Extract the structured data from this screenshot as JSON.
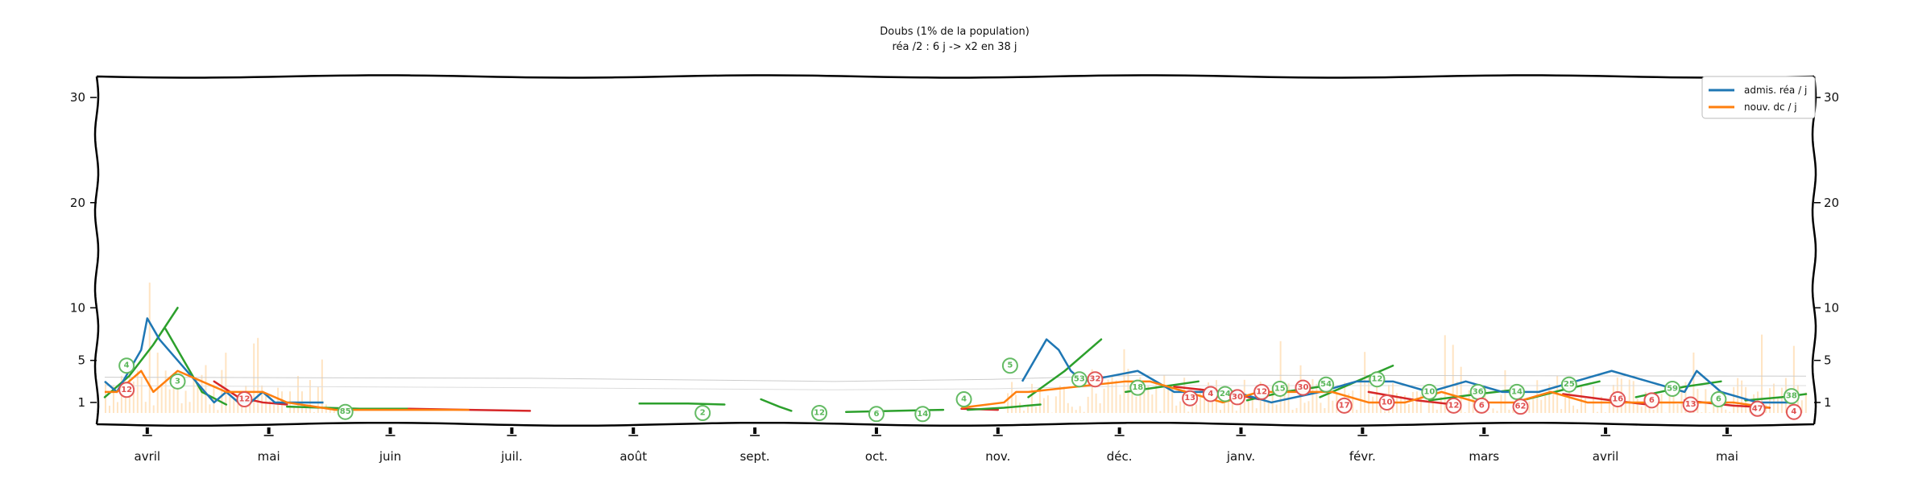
{
  "chart_data": {
    "type": "line",
    "title": "Doubs (1% de la population)",
    "subtitle": "réa /2 : 6 j -> x2 en 38 j",
    "xlabel": "",
    "ylabel": "",
    "ylim": [
      0,
      32
    ],
    "yticks": [
      1,
      5,
      10,
      20,
      30
    ],
    "yticklabels": [
      "1",
      "5",
      "10",
      "20",
      "30"
    ],
    "xlim": [
      0,
      14
    ],
    "xticks": [
      0.35,
      1.35,
      2.35,
      3.35,
      4.35,
      5.35,
      6.35,
      7.35,
      8.35,
      9.35,
      10.35,
      11.35,
      12.35,
      13.35
    ],
    "xticklabels": [
      "avril",
      "mai",
      "juin",
      "juil.",
      "août",
      "sept.",
      "oct.",
      "nov.",
      "déc.",
      "janv.",
      "févr.",
      "mars",
      "avril",
      "mai"
    ],
    "legend_position": "top-right",
    "colors": {
      "admis": "#1f77b4",
      "dc": "#ff7f0e",
      "trend_up": "#2ca02c",
      "trend_down": "#d62728",
      "bars": "#ffd9a8",
      "badge_green": "#5cb85c",
      "badge_red": "#e05050"
    },
    "series": [
      {
        "name": "admis. réa / j",
        "x": [
          0.0,
          0.1,
          0.2,
          0.3,
          0.35,
          0.45,
          0.6,
          0.9,
          1.0,
          1.1,
          1.2,
          1.3,
          1.4,
          1.5,
          1.8,
          7.55,
          7.65,
          7.75,
          7.85,
          7.95,
          8.05,
          8.5,
          8.8,
          9.0,
          9.3,
          9.6,
          10.0,
          10.3,
          10.6,
          10.9,
          11.2,
          11.5,
          11.8,
          12.1,
          12.4,
          12.7,
          13.0,
          13.1,
          13.3,
          13.6,
          13.9
        ],
        "y": [
          3,
          2,
          4,
          6,
          9,
          7,
          5,
          1,
          2,
          1,
          1,
          2,
          1,
          1,
          1,
          3,
          5,
          7,
          6,
          4,
          3,
          4,
          2,
          2,
          2,
          1,
          2,
          3,
          3,
          2,
          3,
          2,
          2,
          3,
          4,
          3,
          2,
          4,
          2,
          1,
          1
        ]
      },
      {
        "name": "nouv. dc / j",
        "x": [
          0.0,
          0.1,
          0.2,
          0.3,
          0.4,
          0.5,
          0.6,
          0.8,
          1.0,
          1.3,
          1.5,
          1.9,
          2.5,
          3.0,
          7.05,
          7.4,
          7.5,
          7.6,
          8.4,
          8.6,
          8.9,
          9.2,
          9.5,
          9.8,
          10.1,
          10.4,
          10.7,
          11.0,
          11.3,
          11.6,
          11.9,
          12.2,
          12.5,
          12.8,
          13.1,
          13.4,
          13.7
        ],
        "y": [
          2,
          2,
          3,
          4,
          2,
          3,
          4,
          3,
          2,
          2,
          1,
          0.3,
          0.3,
          0.3,
          0.5,
          1,
          2,
          2,
          3,
          3,
          2,
          1,
          2,
          2,
          2,
          1,
          1,
          2,
          1,
          1,
          2,
          1,
          1,
          1,
          1,
          1,
          0.5
        ]
      }
    ],
    "trends": [
      {
        "dir": "up",
        "x": [
          0.0,
          0.2,
          0.4,
          0.6
        ],
        "y": [
          1.5,
          3.5,
          6.5,
          10
        ]
      },
      {
        "dir": "up",
        "x": [
          0.5,
          0.8,
          1.0
        ],
        "y": [
          8,
          2,
          0.8
        ]
      },
      {
        "dir": "down",
        "x": [
          0.9,
          1.1,
          1.3,
          1.5
        ],
        "y": [
          3,
          1.5,
          1,
          0.8
        ]
      },
      {
        "dir": "up",
        "x": [
          1.5,
          1.8,
          2.1,
          2.5
        ],
        "y": [
          0.6,
          0.5,
          0.4,
          0.4
        ]
      },
      {
        "dir": "down",
        "x": [
          2.5,
          3.0,
          3.5
        ],
        "y": [
          0.4,
          0.3,
          0.2
        ]
      },
      {
        "dir": "up",
        "x": [
          4.4,
          4.8,
          5.1
        ],
        "y": [
          0.9,
          0.9,
          0.8
        ]
      },
      {
        "dir": "up",
        "x": [
          5.4,
          5.55,
          5.65
        ],
        "y": [
          1.3,
          0.6,
          0.2
        ]
      },
      {
        "dir": "up",
        "x": [
          6.1,
          6.5,
          6.9
        ],
        "y": [
          0.1,
          0.2,
          0.3
        ]
      },
      {
        "dir": "down",
        "x": [
          7.05,
          7.35
        ],
        "y": [
          0.4,
          0.3
        ]
      },
      {
        "dir": "up",
        "x": [
          7.1,
          7.4,
          7.7
        ],
        "y": [
          0.3,
          0.5,
          0.8
        ]
      },
      {
        "dir": "up",
        "x": [
          7.6,
          7.9,
          8.2
        ],
        "y": [
          1.5,
          4,
          7
        ]
      },
      {
        "dir": "up",
        "x": [
          8.4,
          8.7,
          9.0
        ],
        "y": [
          2,
          2.5,
          3
        ]
      },
      {
        "dir": "down",
        "x": [
          8.8,
          9.2,
          9.5
        ],
        "y": [
          2.5,
          2,
          1.3
        ]
      },
      {
        "dir": "up",
        "x": [
          9.4,
          9.7,
          10.0
        ],
        "y": [
          1.2,
          2,
          2.5
        ]
      },
      {
        "dir": "up",
        "x": [
          10.0,
          10.3,
          10.6
        ],
        "y": [
          1.5,
          3,
          4.5
        ]
      },
      {
        "dir": "down",
        "x": [
          10.4,
          10.8,
          11.1
        ],
        "y": [
          2,
          1.2,
          0.8
        ]
      },
      {
        "dir": "up",
        "x": [
          10.9,
          11.3,
          11.6
        ],
        "y": [
          1.2,
          1.8,
          2.2
        ]
      },
      {
        "dir": "up",
        "x": [
          11.7,
          12.0,
          12.3
        ],
        "y": [
          1.3,
          2.2,
          3
        ]
      },
      {
        "dir": "down",
        "x": [
          12.0,
          12.4,
          12.7
        ],
        "y": [
          1.8,
          1.2,
          0.8
        ]
      },
      {
        "dir": "up",
        "x": [
          12.6,
          13.0,
          13.3
        ],
        "y": [
          1.5,
          2.5,
          3
        ]
      },
      {
        "dir": "down",
        "x": [
          13.0,
          13.4,
          13.7
        ],
        "y": [
          1.2,
          0.7,
          0.5
        ]
      },
      {
        "dir": "up",
        "x": [
          13.5,
          13.8,
          14.0
        ],
        "y": [
          1.2,
          1.5,
          1.8
        ]
      }
    ],
    "annotations": [
      {
        "x": 0.18,
        "y": 4.5,
        "text": "4",
        "color": "green"
      },
      {
        "x": 0.18,
        "y": 2.2,
        "text": "12",
        "color": "red"
      },
      {
        "x": 0.6,
        "y": 3.0,
        "text": "3",
        "color": "green"
      },
      {
        "x": 1.15,
        "y": 1.3,
        "text": "12",
        "color": "red"
      },
      {
        "x": 1.98,
        "y": 0.1,
        "text": "85",
        "color": "green"
      },
      {
        "x": 4.92,
        "y": 0.0,
        "text": "2",
        "color": "green"
      },
      {
        "x": 5.88,
        "y": 0.0,
        "text": "12",
        "color": "green"
      },
      {
        "x": 6.35,
        "y": -0.1,
        "text": "6",
        "color": "green"
      },
      {
        "x": 6.73,
        "y": -0.1,
        "text": "14",
        "color": "green"
      },
      {
        "x": 7.07,
        "y": 1.3,
        "text": "4",
        "color": "green"
      },
      {
        "x": 7.45,
        "y": 4.5,
        "text": "5",
        "color": "green"
      },
      {
        "x": 8.02,
        "y": 3.2,
        "text": "53",
        "color": "green"
      },
      {
        "x": 8.15,
        "y": 3.2,
        "text": "32",
        "color": "red"
      },
      {
        "x": 8.5,
        "y": 2.4,
        "text": "18",
        "color": "green"
      },
      {
        "x": 8.93,
        "y": 1.4,
        "text": "13",
        "color": "red"
      },
      {
        "x": 9.1,
        "y": 1.8,
        "text": "4",
        "color": "red"
      },
      {
        "x": 9.22,
        "y": 1.8,
        "text": "24",
        "color": "green"
      },
      {
        "x": 9.32,
        "y": 1.5,
        "text": "30",
        "color": "red"
      },
      {
        "x": 9.52,
        "y": 2.0,
        "text": "12",
        "color": "red"
      },
      {
        "x": 9.67,
        "y": 2.3,
        "text": "15",
        "color": "green"
      },
      {
        "x": 9.86,
        "y": 2.4,
        "text": "30",
        "color": "red"
      },
      {
        "x": 10.05,
        "y": 2.7,
        "text": "54",
        "color": "green"
      },
      {
        "x": 10.2,
        "y": 0.7,
        "text": "17",
        "color": "red"
      },
      {
        "x": 10.47,
        "y": 3.2,
        "text": "12",
        "color": "green"
      },
      {
        "x": 10.55,
        "y": 1.0,
        "text": "10",
        "color": "red"
      },
      {
        "x": 10.9,
        "y": 2.0,
        "text": "10",
        "color": "green"
      },
      {
        "x": 11.1,
        "y": 0.7,
        "text": "12",
        "color": "red"
      },
      {
        "x": 11.3,
        "y": 2.0,
        "text": "36",
        "color": "green"
      },
      {
        "x": 11.33,
        "y": 0.7,
        "text": "6",
        "color": "red"
      },
      {
        "x": 11.62,
        "y": 2.0,
        "text": "14",
        "color": "green"
      },
      {
        "x": 11.65,
        "y": 0.6,
        "text": "62",
        "color": "red"
      },
      {
        "x": 12.05,
        "y": 2.7,
        "text": "25",
        "color": "green"
      },
      {
        "x": 12.45,
        "y": 1.3,
        "text": "16",
        "color": "red"
      },
      {
        "x": 12.73,
        "y": 1.2,
        "text": "6",
        "color": "red"
      },
      {
        "x": 12.9,
        "y": 2.3,
        "text": "59",
        "color": "green"
      },
      {
        "x": 13.05,
        "y": 0.8,
        "text": "13",
        "color": "red"
      },
      {
        "x": 13.28,
        "y": 1.3,
        "text": "6",
        "color": "green"
      },
      {
        "x": 13.6,
        "y": 0.4,
        "text": "47",
        "color": "red"
      },
      {
        "x": 13.88,
        "y": 1.6,
        "text": "38",
        "color": "green"
      },
      {
        "x": 13.9,
        "y": 0.1,
        "text": "4",
        "color": "red"
      }
    ]
  }
}
